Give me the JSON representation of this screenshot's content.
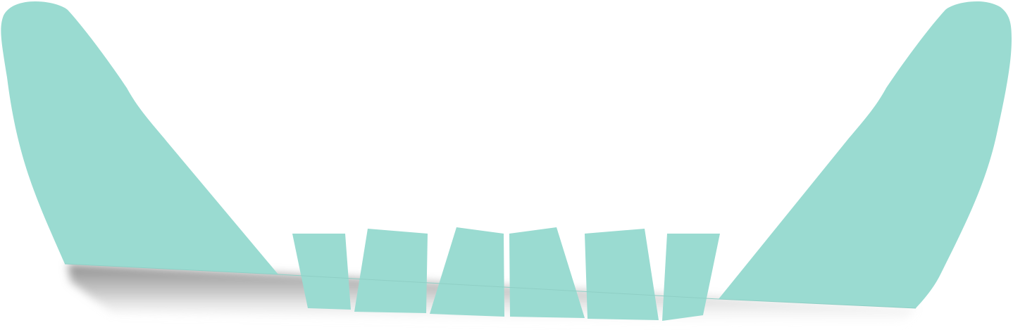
{
  "graphic": {
    "colors": {
      "fill": "#9adbd1",
      "background": "#ffffff",
      "shadow": "#9a9a9a"
    },
    "elements": [
      "left-wing-shape",
      "right-wing-shape",
      "center-segment-1",
      "center-segment-2",
      "center-segment-3",
      "center-segment-4",
      "center-segment-5",
      "center-segment-6"
    ]
  }
}
